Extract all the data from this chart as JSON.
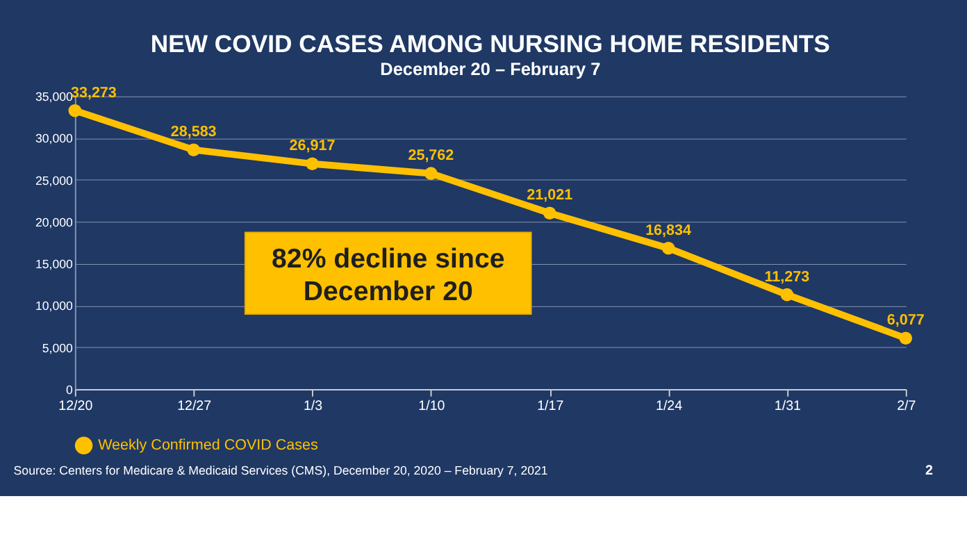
{
  "chart_data": {
    "type": "line",
    "title": "NEW COVID CASES AMONG NURSING HOME RESIDENTS",
    "subtitle": "December 20 – February 7",
    "categories": [
      "12/20",
      "12/27",
      "1/3",
      "1/10",
      "1/17",
      "1/24",
      "1/31",
      "2/7"
    ],
    "series": [
      {
        "name": "Weekly Confirmed COVID Cases",
        "color": "#ffc000",
        "values": [
          33273,
          28583,
          26917,
          25762,
          21021,
          16834,
          11273,
          6077
        ]
      }
    ],
    "value_labels": [
      "33,273",
      "28,583",
      "26,917",
      "25,762",
      "21,021",
      "16,834",
      "11,273",
      "6,077"
    ],
    "ylim": [
      0,
      35000
    ],
    "yticks": [
      0,
      {
        "value": 5000,
        "label": "5,000"
      },
      {
        "value": 10000,
        "label": "10,000"
      },
      {
        "value": 15000,
        "label": "15,000"
      },
      {
        "value": 20000,
        "label": "20,000"
      },
      {
        "value": 25000,
        "label": "25,000"
      },
      {
        "value": 30000,
        "label": "30,000"
      },
      {
        "value": 35000,
        "label": "35,000"
      }
    ],
    "grid": "y",
    "legend": "bottom",
    "marker": "circle",
    "annotations": [
      "82% decline since\nDecember 20",
      "Source: Centers for Medicare & Medicaid Services (CMS), December 20, 2020 – February 7, 2021",
      "2"
    ]
  }
}
